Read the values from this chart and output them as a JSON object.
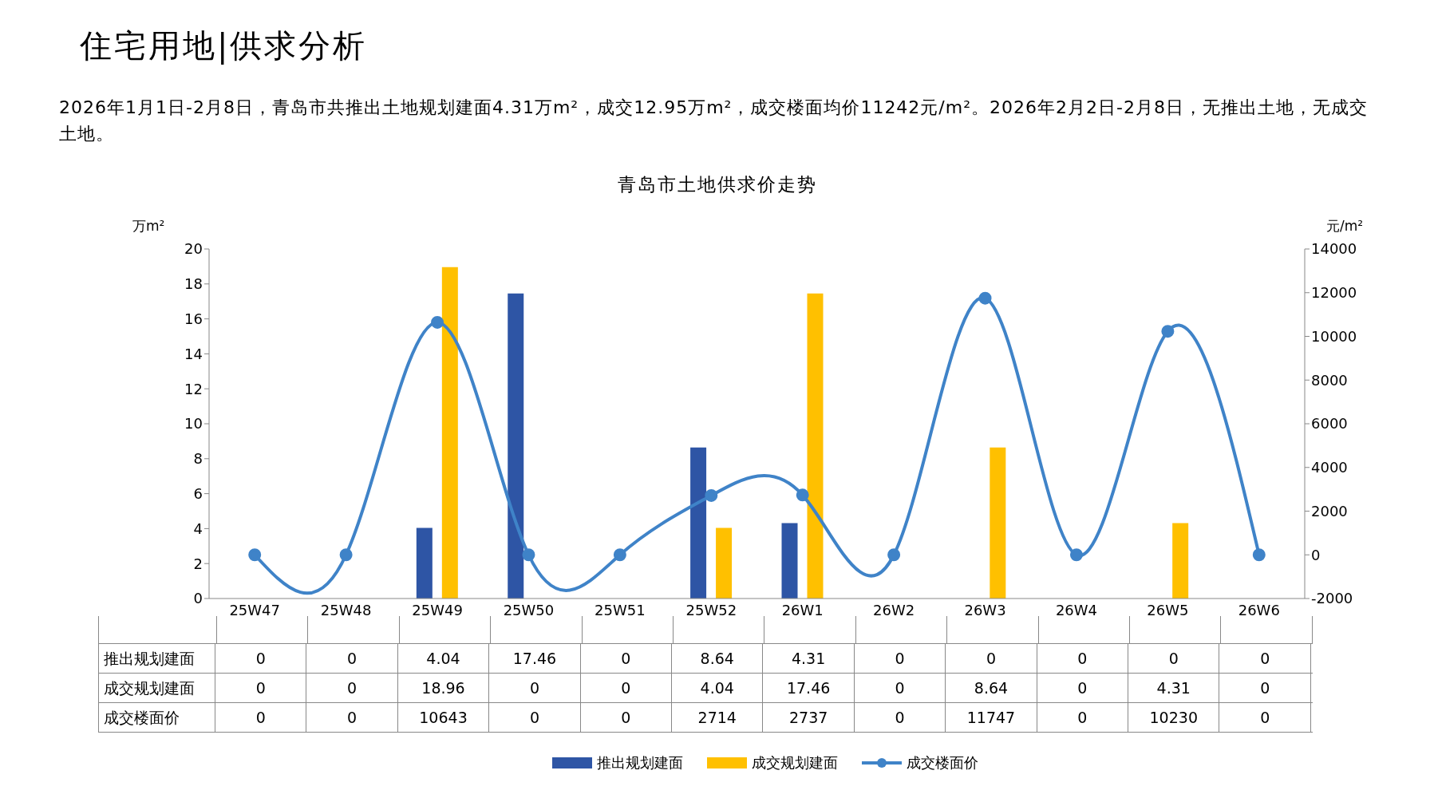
{
  "chart_data": {
    "type": "bar",
    "title": "青岛市土地供求价走势",
    "annotations": [
      "住宅用地|供求分析",
      "2026年1月1日-2月8日，青岛市共推出土地规划建面4.31万m²，成交12.95万m²，成交楼面均价11242元/m²。2026年2月2日-2月8日，无推出土地，无成交土地。"
    ],
    "ylabel": "万m²",
    "y2label": "元/m²",
    "categories": [
      "25W47",
      "25W48",
      "25W49",
      "25W50",
      "25W51",
      "25W52",
      "26W1",
      "26W2",
      "26W3",
      "26W4",
      "26W5",
      "26W6"
    ],
    "series": [
      {
        "name": "推出规划建面",
        "color": "#2e55a5",
        "values": [
          0,
          0,
          4.04,
          17.46,
          0,
          8.64,
          4.31,
          0,
          0,
          0,
          0,
          0
        ]
      },
      {
        "name": "成交规划建面",
        "color": "#ffc000",
        "values": [
          0,
          0,
          18.96,
          0,
          0,
          4.04,
          17.46,
          0,
          8.64,
          0,
          4.31,
          0
        ]
      },
      {
        "name": "成交楼面价",
        "type": "line",
        "axis": "y2",
        "color": "#3f83c8",
        "values": [
          0,
          0,
          10643,
          0,
          0,
          2714,
          2737,
          0,
          11747,
          0,
          10230,
          0
        ]
      }
    ],
    "ylim": [
      0,
      20
    ],
    "yticks": [
      0,
      2,
      4,
      6,
      8,
      10,
      12,
      14,
      16,
      18,
      20
    ],
    "y2lim": [
      -2000,
      14000
    ],
    "y2ticks": [
      -2000,
      0,
      2000,
      4000,
      6000,
      8000,
      10000,
      12000,
      14000
    ],
    "grid": false,
    "legend": "bottom",
    "marker": "circle",
    "line_style": "solid",
    "data_labels": true
  }
}
